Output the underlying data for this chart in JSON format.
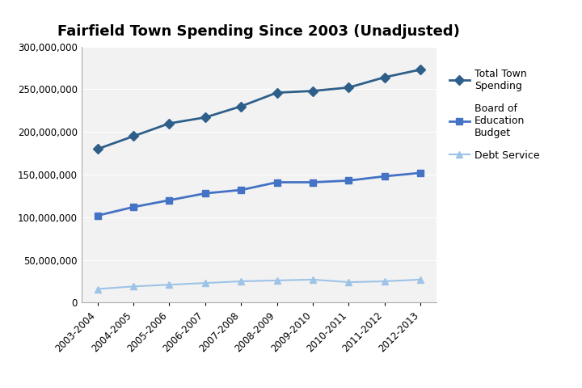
{
  "title": "Fairfield Town Spending Since 2003 (Unadjusted)",
  "categories": [
    "2003-2004",
    "2004-2005",
    "2005-2006",
    "2006-2007",
    "2007-2008",
    "2008-2009",
    "2009-2010",
    "2010-2011",
    "2011-2012",
    "2012-2013"
  ],
  "total_town_spending": [
    180000000,
    195000000,
    210000000,
    217000000,
    230000000,
    246000000,
    248000000,
    252000000,
    264000000,
    273000000
  ],
  "board_of_education": [
    102000000,
    112000000,
    120000000,
    128000000,
    132000000,
    141000000,
    141000000,
    143000000,
    148000000,
    152000000
  ],
  "debt_service": [
    16000000,
    19000000,
    21000000,
    23000000,
    25000000,
    26000000,
    27000000,
    24000000,
    25000000,
    27000000
  ],
  "color_total": "#2E5F8A",
  "color_boe": "#4472C4",
  "color_debt": "#9DC3E6",
  "ylim": [
    0,
    300000000
  ],
  "yticks": [
    0,
    50000000,
    100000000,
    150000000,
    200000000,
    250000000,
    300000000
  ],
  "legend_labels": [
    "Total Town\nSpending",
    "Board of\nEducation\nBudget",
    "Debt Service"
  ],
  "background_color": "#FFFFFF",
  "plot_bg_color": "#F2F2F2",
  "grid_color": "#FFFFFF"
}
